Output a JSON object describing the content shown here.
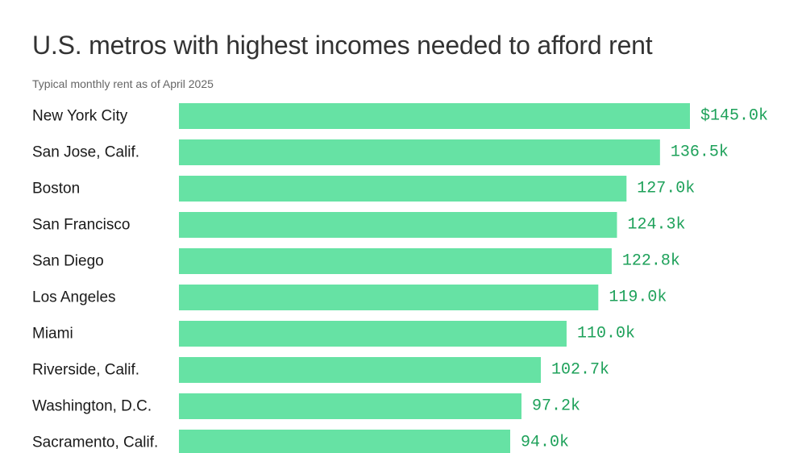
{
  "chart_data": {
    "type": "bar",
    "orientation": "horizontal",
    "title": "U.S. metros with highest incomes needed to afford rent",
    "subtitle": "Typical monthly rent as of April 2025",
    "categories": [
      "New York City",
      "San Jose, Calif.",
      "Boston",
      "San Francisco",
      "San Diego",
      "Los Angeles",
      "Miami",
      "Riverside, Calif.",
      "Washington, D.C.",
      "Sacramento, Calif."
    ],
    "values": [
      145.0,
      136.5,
      127.0,
      124.3,
      122.8,
      119.0,
      110.0,
      102.7,
      97.2,
      94.0
    ],
    "value_labels": [
      "$145.0k",
      "136.5k",
      "127.0k",
      "124.3k",
      "122.8k",
      "119.0k",
      "110.0k",
      "102.7k",
      "97.2k",
      "94.0k"
    ],
    "xlim": [
      0,
      145.0
    ],
    "bar_color": "#66e2a4",
    "label_color": "#1ea15a"
  }
}
